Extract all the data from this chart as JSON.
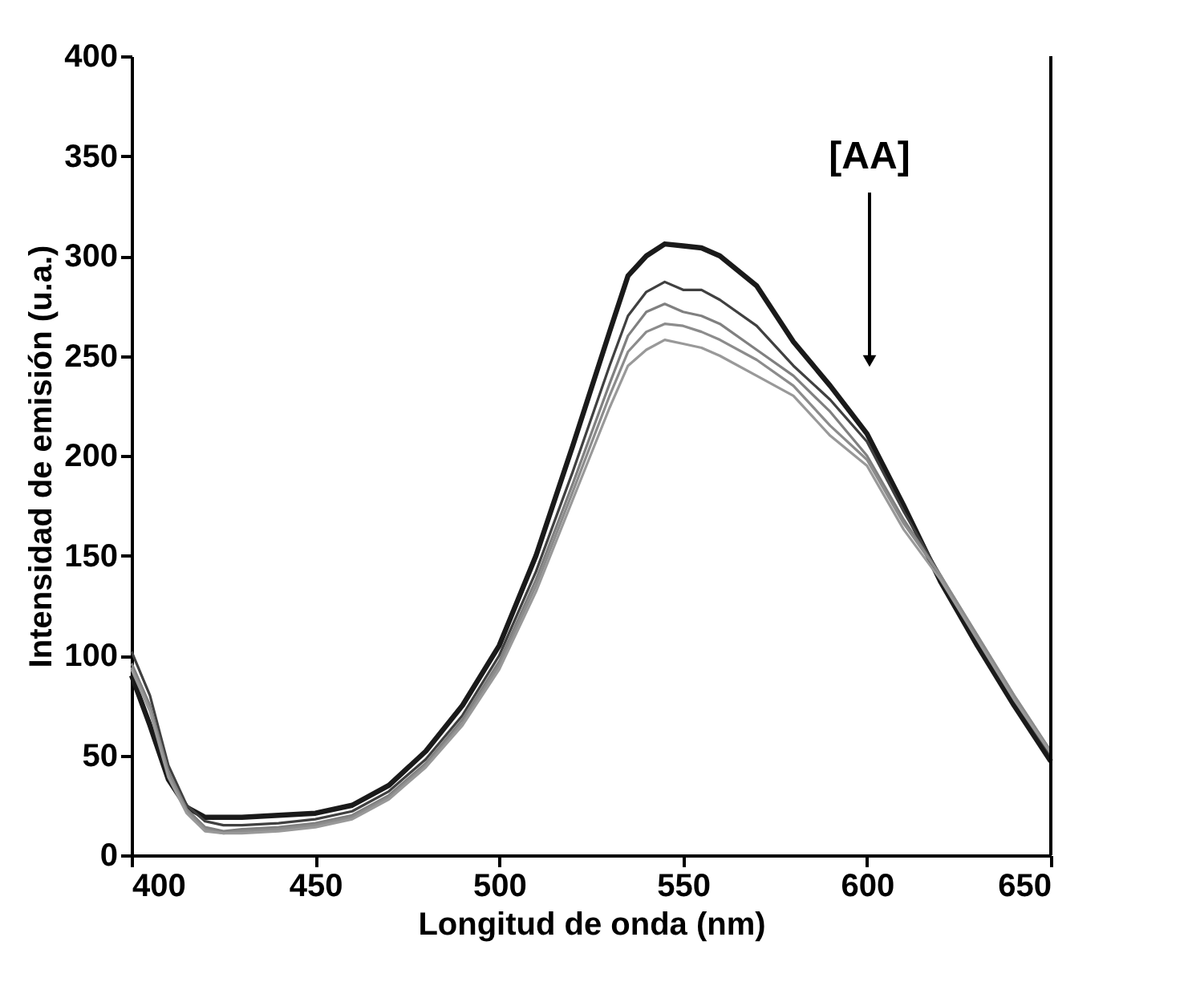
{
  "chart_data": {
    "type": "line",
    "xlabel": "Longitud de onda (nm)",
    "ylabel": "Intensidad de emisión (u.a.)",
    "x": [
      400,
      405,
      410,
      415,
      420,
      425,
      430,
      440,
      450,
      460,
      470,
      480,
      490,
      500,
      510,
      520,
      530,
      535,
      540,
      545,
      550,
      555,
      560,
      570,
      580,
      590,
      600,
      610,
      620,
      630,
      640,
      650
    ],
    "series": [
      {
        "color": "#1a1a1a",
        "values": [
          90,
          65,
          38,
          24,
          19,
          19,
          19,
          20,
          21,
          25,
          35,
          52,
          75,
          105,
          150,
          205,
          262,
          290,
          300,
          306,
          305,
          304,
          300,
          285,
          257,
          235,
          211,
          175,
          137,
          105,
          75,
          47
        ]
      },
      {
        "color": "#404040",
        "values": [
          102,
          80,
          45,
          25,
          17,
          15,
          15,
          16,
          18,
          22,
          32,
          48,
          70,
          100,
          142,
          192,
          245,
          270,
          282,
          287,
          283,
          283,
          278,
          265,
          245,
          228,
          207,
          172,
          140,
          108,
          78,
          50
        ]
      },
      {
        "color": "#808080",
        "values": [
          96,
          75,
          42,
          23,
          14,
          12,
          13,
          14,
          16,
          20,
          30,
          46,
          68,
          97,
          138,
          186,
          236,
          260,
          272,
          276,
          272,
          270,
          266,
          253,
          240,
          222,
          200,
          168,
          140,
          110,
          80,
          52
        ]
      },
      {
        "color": "#8c8c8c",
        "values": [
          94,
          73,
          40,
          22,
          13,
          11,
          12,
          13,
          15,
          19,
          29,
          45,
          66,
          95,
          135,
          182,
          230,
          252,
          262,
          266,
          265,
          262,
          258,
          248,
          235,
          215,
          198,
          166,
          140,
          110,
          80,
          52
        ]
      },
      {
        "color": "#999999",
        "values": [
          93,
          72,
          39,
          21,
          12,
          11,
          11,
          12,
          14,
          18,
          28,
          44,
          65,
          93,
          132,
          178,
          224,
          245,
          253,
          258,
          256,
          254,
          250,
          240,
          230,
          210,
          195,
          163,
          138,
          108,
          78,
          51
        ]
      }
    ],
    "xlim": [
      400,
      650
    ],
    "xticks": [
      400,
      450,
      500,
      550,
      600,
      650
    ],
    "ylim": [
      0,
      400
    ],
    "yticks": [
      0,
      50,
      100,
      150,
      200,
      250,
      300,
      350,
      400
    ],
    "grid": false,
    "marker": "none",
    "line_style": "solid",
    "annotations": [
      "[AA]"
    ]
  }
}
